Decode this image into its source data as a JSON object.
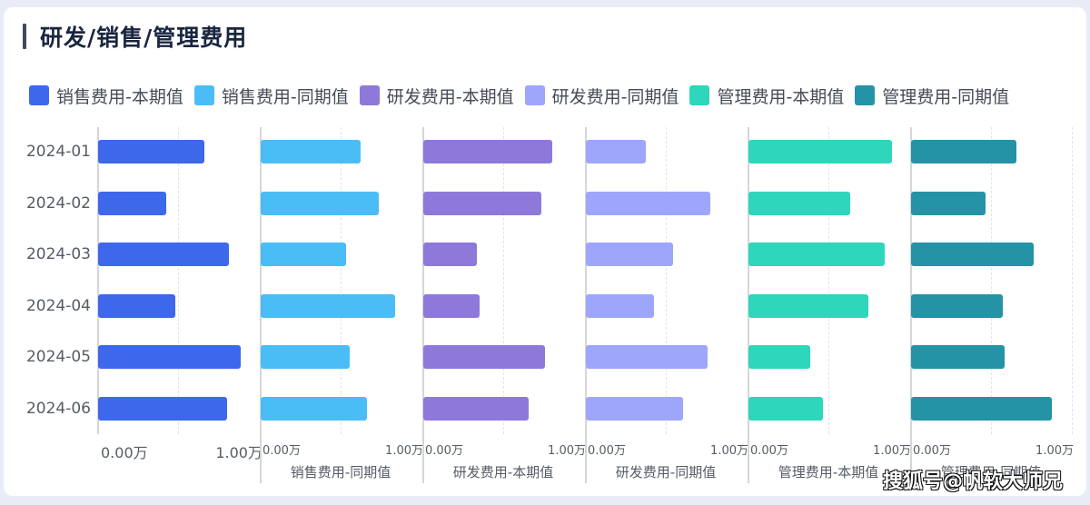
{
  "title": "研发/销售/管理费用",
  "legend": [
    {
      "label": "销售费用-本期值",
      "color": "#3d68ec"
    },
    {
      "label": "销售费用-同期值",
      "color": "#4bbdf6"
    },
    {
      "label": "研发费用-本期值",
      "color": "#8e79db"
    },
    {
      "label": "研发费用-同期值",
      "color": "#9ea6fb"
    },
    {
      "label": "管理费用-本期值",
      "color": "#2ed6bb"
    },
    {
      "label": "管理费用-同期值",
      "color": "#2593a6"
    }
  ],
  "categories": [
    "2024-01",
    "2024-02",
    "2024-03",
    "2024-04",
    "2024-05",
    "2024-06"
  ],
  "axis": {
    "min_label": "0.00万",
    "max_label": "1.00万"
  },
  "panels": [
    {
      "name": "销售费用-本期值",
      "axis_title": ""
    },
    {
      "name": "销售费用-同期值",
      "axis_title": "销售费用-同期值"
    },
    {
      "name": "研发费用-本期值",
      "axis_title": "研发费用-本期值"
    },
    {
      "name": "研发费用-同期值",
      "axis_title": "研发费用-同期值"
    },
    {
      "name": "管理费用-本期值",
      "axis_title": "管理费用-本期值"
    },
    {
      "name": "管理费用-同期值",
      "axis_title": "管理费用-同期值"
    }
  ],
  "watermark": "搜狐号@帆软大师兄",
  "chart_data": {
    "type": "bar",
    "orientation": "horizontal",
    "title": "研发/销售/管理费用",
    "categories": [
      "2024-01",
      "2024-02",
      "2024-03",
      "2024-04",
      "2024-05",
      "2024-06"
    ],
    "unit": "万",
    "xlim": [
      0,
      1.0
    ],
    "xticks": [
      "0.00万",
      "1.00万"
    ],
    "grid": "dashed vertical midline",
    "legend_position": "top",
    "series": [
      {
        "name": "销售费用-本期值",
        "color": "#3d68ec",
        "values": [
          0.66,
          0.42,
          0.81,
          0.48,
          0.88,
          0.8
        ]
      },
      {
        "name": "销售费用-同期值",
        "color": "#4bbdf6",
        "values": [
          0.62,
          0.73,
          0.53,
          0.83,
          0.55,
          0.66
        ]
      },
      {
        "name": "研发费用-本期值",
        "color": "#8e79db",
        "values": [
          0.8,
          0.73,
          0.33,
          0.35,
          0.75,
          0.65
        ]
      },
      {
        "name": "研发费用-同期值",
        "color": "#9ea6fb",
        "values": [
          0.37,
          0.77,
          0.54,
          0.42,
          0.75,
          0.6
        ]
      },
      {
        "name": "管理费用-本期值",
        "color": "#2ed6bb",
        "values": [
          0.89,
          0.63,
          0.84,
          0.74,
          0.38,
          0.46
        ]
      },
      {
        "name": "管理费用-同期值",
        "color": "#2593a6",
        "values": [
          0.65,
          0.46,
          0.76,
          0.57,
          0.58,
          0.87
        ]
      }
    ]
  }
}
